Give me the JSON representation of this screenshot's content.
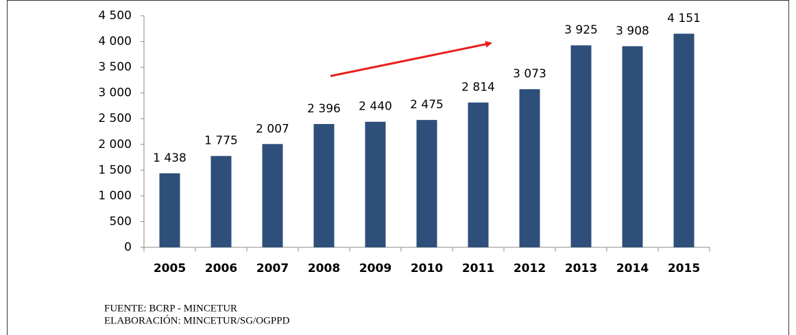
{
  "chart_data": {
    "type": "bar",
    "categories": [
      "2005",
      "2006",
      "2007",
      "2008",
      "2009",
      "2010",
      "2011",
      "2012",
      "2013",
      "2014",
      "2015"
    ],
    "values": [
      1438,
      1775,
      2007,
      2396,
      2440,
      2475,
      2814,
      3073,
      3925,
      3908,
      4151
    ],
    "value_labels": [
      "1 438",
      "1 775",
      "2 007",
      "2 396",
      "2 440",
      "2 475",
      "2 814",
      "3 073",
      "3 925",
      "3 908",
      "4 151"
    ],
    "color": "#2e4f7a",
    "ylim": [
      0,
      4500
    ],
    "yticks": [
      0,
      500,
      {
        "value": 1000,
        "label": "1 000"
      },
      {
        "value": 1500,
        "label": "1 500"
      },
      {
        "value": 2000,
        "label": "2 000"
      },
      {
        "value": 2500,
        "label": "2 500"
      },
      {
        "value": 3000,
        "label": "3 000"
      },
      {
        "value": 3500,
        "label": "3 500"
      },
      {
        "value": 4000,
        "label": "4 000"
      },
      {
        "value": 4500,
        "label": "4 500"
      }
    ],
    "grid": false,
    "notes": [
      "FUENTE: BCRP - MINCETUR",
      "ELABORACIÓN: MINCETUR/SG/OGPPD"
    ]
  }
}
